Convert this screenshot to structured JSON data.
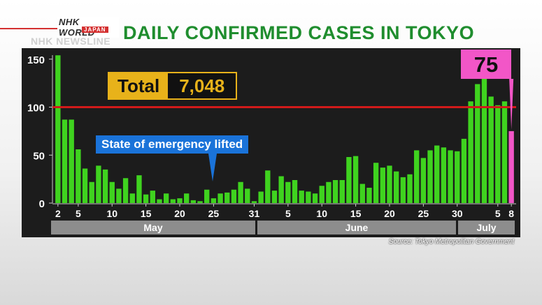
{
  "branding": {
    "logo": "NHK WORLD",
    "logo_sub": "JAPAN",
    "program": "NHK NEWSLINE"
  },
  "title": "DAILY CONFIRMED CASES IN TOKYO",
  "total": {
    "label": "Total",
    "value": "7,048"
  },
  "annotation": "State of emergency lifted",
  "latest_callout": "75",
  "source": "Source: Tokyo Metropolitan Government",
  "colors": {
    "bar": "#3fd31f",
    "highlight": "#f256c7",
    "threshold": "#d11a1a",
    "title": "#1f8d2e"
  },
  "chart_data": {
    "type": "bar",
    "title": "DAILY CONFIRMED CASES IN TOKYO",
    "ylim": [
      0,
      160
    ],
    "y_ticks": [
      0,
      50,
      100,
      150
    ],
    "reference_line": 100,
    "x_tick_labels": [
      "2",
      "5",
      "10",
      "15",
      "20",
      "25",
      "31",
      "5",
      "10",
      "15",
      "20",
      "25",
      "30",
      "5",
      "8"
    ],
    "months": [
      "May",
      "June",
      "July"
    ],
    "highlight_last": true,
    "values": [
      154,
      87,
      87,
      56,
      36,
      22,
      39,
      35,
      22,
      15,
      26,
      10,
      29,
      9,
      13,
      4,
      10,
      4,
      5,
      10,
      3,
      2,
      14,
      5,
      10,
      11,
      14,
      22,
      15,
      2,
      12,
      34,
      13,
      28,
      22,
      24,
      13,
      12,
      10,
      18,
      22,
      24,
      24,
      48,
      49,
      20,
      16,
      42,
      37,
      39,
      33,
      27,
      30,
      55,
      47,
      55,
      60,
      58,
      55,
      54,
      67,
      106,
      124,
      131,
      111,
      102,
      106,
      75
    ]
  }
}
